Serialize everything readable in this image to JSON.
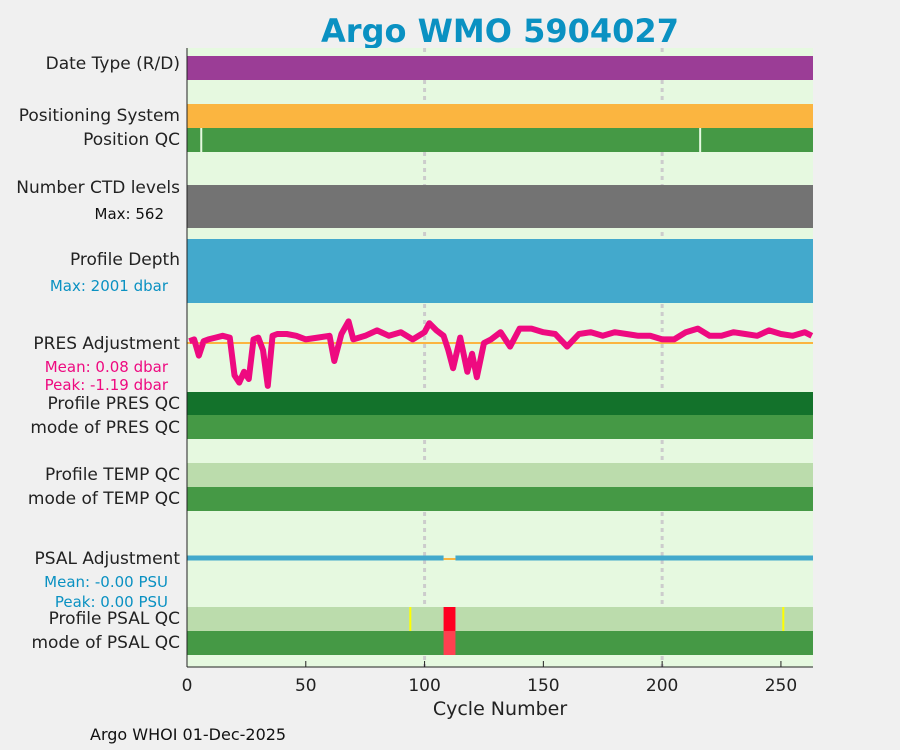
{
  "title": "Argo WMO 5904027",
  "footer": "Argo WHOI 01-Dec-2025",
  "rows": {
    "date_type": "Date Type (R/D)",
    "positioning": "Positioning System",
    "position_qc": "Position QC",
    "ctd_levels": "Number CTD levels",
    "ctd_max": "Max: 562",
    "depth": "Profile Depth",
    "depth_max": "Max: 2001 dbar",
    "pres_adj": "PRES Adjustment",
    "pres_mean": "Mean: 0.08 dbar",
    "pres_peak": "Peak: -1.19 dbar",
    "pres_qc": "Profile PRES QC",
    "pres_mode": "mode of PRES QC",
    "temp_qc": "Profile TEMP QC",
    "temp_mode": "mode of TEMP QC",
    "psal_adj": "PSAL Adjustment",
    "psal_mean": "Mean: -0.00 PSU",
    "psal_peak": "Peak: 0.00 PSU",
    "psal_qc": "Profile PSAL QC",
    "psal_mode": "mode of PSAL QC"
  },
  "colors": {
    "bg": "#e6f9e0",
    "purple": "#9b3d96",
    "orange": "#fbb540",
    "green": "#459945",
    "darkgreen": "#13722b",
    "lightgreen": "#bbdcac",
    "gray": "#737373",
    "blue": "#43a9cc",
    "magenta": "#ee0a80",
    "red": "#ff0020",
    "lightred": "#ff4050",
    "yellow": "#ffff00",
    "accent": "#0a91c2"
  },
  "chart_data": {
    "type": "line",
    "xlabel": "Cycle Number",
    "xlim": [
      0,
      263.5
    ],
    "xticks": [
      0,
      50,
      100,
      150,
      200,
      250
    ],
    "grid_x": [
      100,
      200
    ],
    "position_qc_bad_cycles": [
      6,
      216
    ],
    "pres_adjustment": {
      "x": [
        1,
        3,
        5,
        7,
        9,
        12,
        15,
        18,
        20,
        22,
        24,
        26,
        28,
        30,
        32,
        34,
        36,
        38,
        42,
        46,
        50,
        55,
        60,
        62,
        65,
        68,
        70,
        75,
        80,
        85,
        90,
        95,
        100,
        102,
        105,
        108,
        110,
        112,
        115,
        118,
        120,
        122,
        125,
        128,
        132,
        136,
        140,
        145,
        150,
        155,
        160,
        165,
        170,
        175,
        180,
        185,
        190,
        195,
        200,
        205,
        210,
        215,
        220,
        225,
        230,
        235,
        240,
        245,
        250,
        255,
        260,
        263
      ],
      "y": [
        0.05,
        0.1,
        -0.35,
        0.05,
        0.1,
        0.15,
        0.2,
        0.15,
        -0.9,
        -1.1,
        -0.8,
        -1.0,
        0.1,
        0.15,
        -0.2,
        -1.19,
        0.2,
        0.25,
        0.25,
        0.2,
        0.1,
        0.15,
        0.2,
        -0.5,
        0.25,
        0.6,
        0.1,
        0.2,
        0.35,
        0.2,
        0.3,
        0.1,
        0.3,
        0.55,
        0.35,
        0.2,
        -0.2,
        -0.7,
        0.15,
        -0.8,
        -0.3,
        -0.95,
        0.0,
        0.1,
        0.3,
        -0.1,
        0.4,
        0.4,
        0.3,
        0.25,
        -0.1,
        0.25,
        0.3,
        0.2,
        0.3,
        0.25,
        0.2,
        0.2,
        0.1,
        0.1,
        0.3,
        0.4,
        0.2,
        0.2,
        0.3,
        0.25,
        0.2,
        0.35,
        0.25,
        0.2,
        0.3,
        0.2
      ]
    },
    "psal_adjustment": {
      "value": 0.0,
      "no_adjust_cycles": [
        108,
        113
      ]
    },
    "psal_qc_flag_cycles": {
      "yellow": [
        94,
        251
      ],
      "red": [
        108,
        113
      ]
    }
  }
}
